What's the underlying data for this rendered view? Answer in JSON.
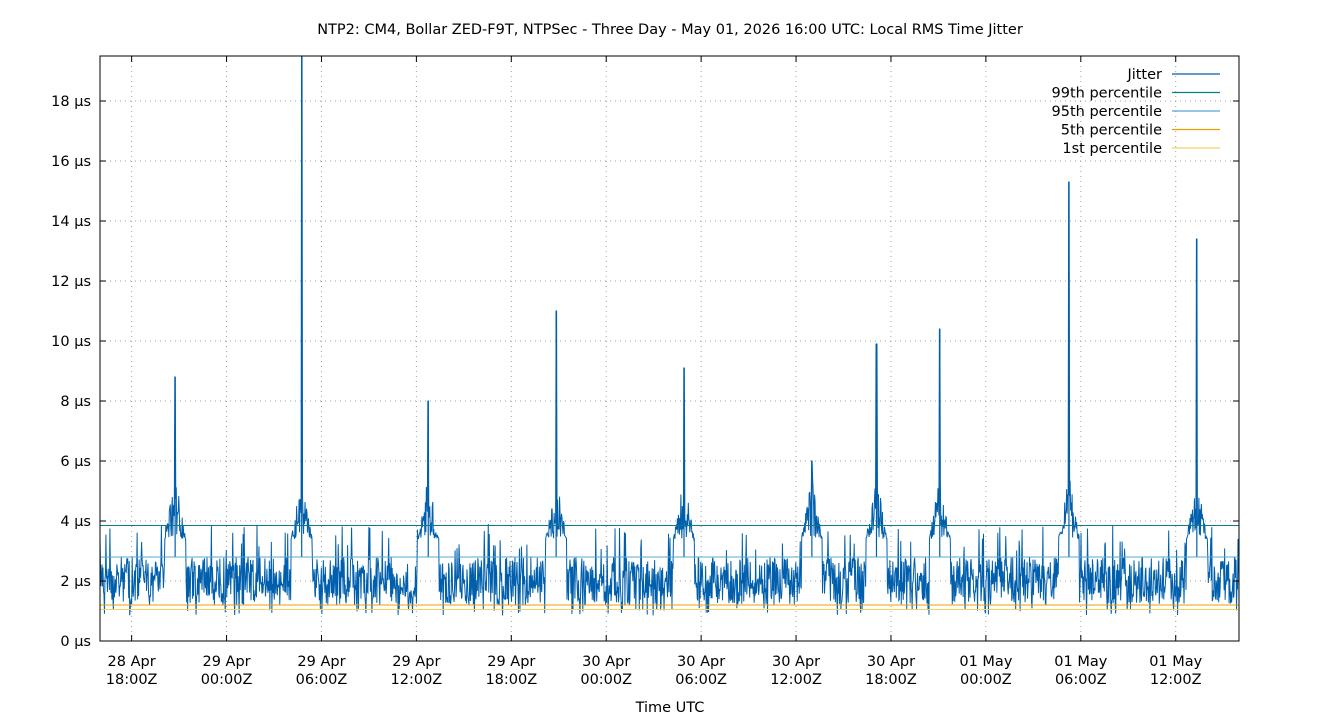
{
  "chart_data": {
    "type": "line",
    "title": "NTP2: CM4, Bollar ZED-F9T, NTPSec - Three Day - May 01, 2026 16:00 UTC: Local RMS Time Jitter",
    "xlabel": "Time UTC",
    "ylabel": "",
    "y_unit": "µs",
    "ylim": [
      0,
      19.5
    ],
    "yticks": [
      0,
      2,
      4,
      6,
      8,
      10,
      12,
      14,
      16,
      18
    ],
    "ytick_labels": [
      "0 µs",
      "2 µs",
      "4 µs",
      "6 µs",
      "8 µs",
      "10 µs",
      "12 µs",
      "14 µs",
      "16 µs",
      "18 µs"
    ],
    "xlim": [
      "2026-04-28T16:00Z",
      "2026-05-01T16:00Z"
    ],
    "xticks": [
      {
        "date": "28 Apr",
        "time": "18:00Z",
        "t": "2026-04-28T18:00Z"
      },
      {
        "date": "29 Apr",
        "time": "00:00Z",
        "t": "2026-04-29T00:00Z"
      },
      {
        "date": "29 Apr",
        "time": "06:00Z",
        "t": "2026-04-29T06:00Z"
      },
      {
        "date": "29 Apr",
        "time": "12:00Z",
        "t": "2026-04-29T12:00Z"
      },
      {
        "date": "29 Apr",
        "time": "18:00Z",
        "t": "2026-04-29T18:00Z"
      },
      {
        "date": "30 Apr",
        "time": "00:00Z",
        "t": "2026-04-30T00:00Z"
      },
      {
        "date": "30 Apr",
        "time": "06:00Z",
        "t": "2026-04-30T06:00Z"
      },
      {
        "date": "30 Apr",
        "time": "12:00Z",
        "t": "2026-04-30T12:00Z"
      },
      {
        "date": "30 Apr",
        "time": "18:00Z",
        "t": "2026-04-30T18:00Z"
      },
      {
        "date": "01 May",
        "time": "00:00Z",
        "t": "2026-05-01T00:00Z"
      },
      {
        "date": "01 May",
        "time": "06:00Z",
        "t": "2026-05-01T06:00Z"
      },
      {
        "date": "01 May",
        "time": "12:00Z",
        "t": "2026-05-01T12:00Z"
      }
    ],
    "grid": true,
    "legend_position": "top-right",
    "series": [
      {
        "name": "Jitter",
        "color": "#005fad",
        "kind": "series",
        "baseline_range": [
          1.2,
          2.8
        ],
        "spikes": [
          {
            "t": "2026-04-28T20:45Z",
            "value": 8.8
          },
          {
            "t": "2026-04-29T04:45Z",
            "value": 19.5
          },
          {
            "t": "2026-04-29T12:45Z",
            "value": 8.0
          },
          {
            "t": "2026-04-29T20:50Z",
            "value": 11.0
          },
          {
            "t": "2026-04-30T04:55Z",
            "value": 9.1
          },
          {
            "t": "2026-04-30T13:00Z",
            "value": 6.0
          },
          {
            "t": "2026-04-30T17:05Z",
            "value": 9.9
          },
          {
            "t": "2026-04-30T21:05Z",
            "value": 10.4
          },
          {
            "t": "2026-05-01T05:15Z",
            "value": 15.3
          },
          {
            "t": "2026-05-01T13:20Z",
            "value": 13.4
          }
        ]
      },
      {
        "name": "99th percentile",
        "color": "#0a7c88",
        "kind": "level",
        "value": 3.85
      },
      {
        "name": "95th percentile",
        "color": "#55a8d8",
        "kind": "level",
        "value": 2.8
      },
      {
        "name": "5th percentile",
        "color": "#e8a000",
        "kind": "level",
        "value": 1.2
      },
      {
        "name": "1st percentile",
        "color": "#f3d35a",
        "kind": "level",
        "value": 1.05
      }
    ]
  }
}
